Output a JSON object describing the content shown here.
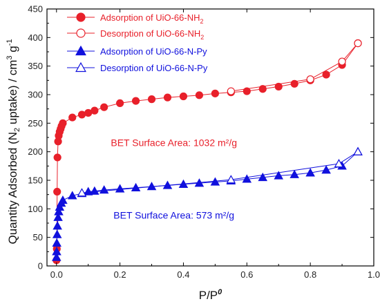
{
  "chart_data": {
    "type": "line",
    "xlabel": "P/P",
    "xlabel_sup": "0",
    "ylabel_parts": [
      "Quantity Adsorbed (N",
      "2",
      " uptake) / cm",
      "3",
      " g",
      "-1"
    ],
    "xlim": [
      -0.03,
      1.0
    ],
    "ylim": [
      0,
      450
    ],
    "x_ticks": [
      0.0,
      0.2,
      0.4,
      0.6,
      0.8,
      1.0
    ],
    "x_tick_labels": [
      "0.0",
      "0.2",
      "0.4",
      "0.6",
      "0.8",
      "1.0"
    ],
    "y_ticks": [
      0,
      50,
      100,
      150,
      200,
      250,
      300,
      350,
      400,
      450
    ],
    "y_tick_labels": [
      "0",
      "50",
      "100",
      "150",
      "200",
      "250",
      "300",
      "350",
      "400",
      "450"
    ],
    "grid": false,
    "legend_position": "top-left",
    "series": [
      {
        "name": "Adsorption of UiO-66-NH2",
        "legend_parts": [
          "Adsorption of UiO-66-NH",
          "2",
          ""
        ],
        "color": "#e8202a",
        "marker": "circle",
        "filled": true,
        "x": [
          0.0,
          0.001,
          0.002,
          0.003,
          0.005,
          0.007,
          0.01,
          0.013,
          0.016,
          0.02,
          0.05,
          0.08,
          0.1,
          0.12,
          0.15,
          0.2,
          0.25,
          0.3,
          0.35,
          0.4,
          0.45,
          0.5,
          0.55,
          0.6,
          0.65,
          0.7,
          0.75,
          0.8,
          0.85,
          0.9,
          0.95
        ],
        "y": [
          10,
          30,
          130,
          190,
          218,
          228,
          235,
          240,
          245,
          250,
          260,
          265,
          268,
          272,
          278,
          285,
          289,
          292,
          295,
          297,
          299,
          302,
          304,
          306,
          310,
          314,
          319,
          325,
          335,
          352,
          390
        ]
      },
      {
        "name": "Desorption of UiO-66-NH2",
        "legend_parts": [
          "Desorption of UiO-66-NH",
          "2",
          ""
        ],
        "color": "#e8202a",
        "marker": "circle",
        "filled": false,
        "x": [
          0.95,
          0.9,
          0.8,
          0.55
        ],
        "y": [
          390,
          358,
          327,
          306
        ]
      },
      {
        "name": "Adsorption of UiO-66-N-Py",
        "legend_parts": [
          "Adsorption of UiO-66-N-Py",
          "",
          ""
        ],
        "color": "#1010dd",
        "marker": "triangle",
        "filled": true,
        "x": [
          0.0,
          0.0005,
          0.001,
          0.002,
          0.003,
          0.005,
          0.007,
          0.01,
          0.015,
          0.02,
          0.05,
          0.08,
          0.1,
          0.12,
          0.15,
          0.2,
          0.25,
          0.3,
          0.35,
          0.4,
          0.45,
          0.5,
          0.55,
          0.6,
          0.65,
          0.7,
          0.75,
          0.8,
          0.85,
          0.9,
          0.95
        ],
        "y": [
          15,
          25,
          40,
          55,
          70,
          85,
          95,
          103,
          110,
          115,
          123,
          127,
          130,
          131,
          133,
          135,
          137,
          139,
          141,
          143,
          145,
          147,
          149,
          152,
          155,
          158,
          160,
          163,
          168,
          175,
          200
        ]
      },
      {
        "name": "Desorption of UiO-66-N-Py",
        "legend_parts": [
          "Desorption of UiO-66-N-Py",
          "",
          ""
        ],
        "color": "#1010dd",
        "marker": "triangle",
        "filled": false,
        "x": [
          0.95,
          0.89,
          0.55,
          0.08
        ],
        "y": [
          200,
          179,
          151,
          128
        ]
      }
    ],
    "annotations": [
      {
        "text": "BET Surface Area: 1032 m²/g",
        "x": 0.37,
        "y": 210,
        "color": "#e8202a"
      },
      {
        "text": "BET Surface Area: 573 m²/g",
        "x": 0.37,
        "y": 83,
        "color": "#1010dd"
      }
    ]
  }
}
